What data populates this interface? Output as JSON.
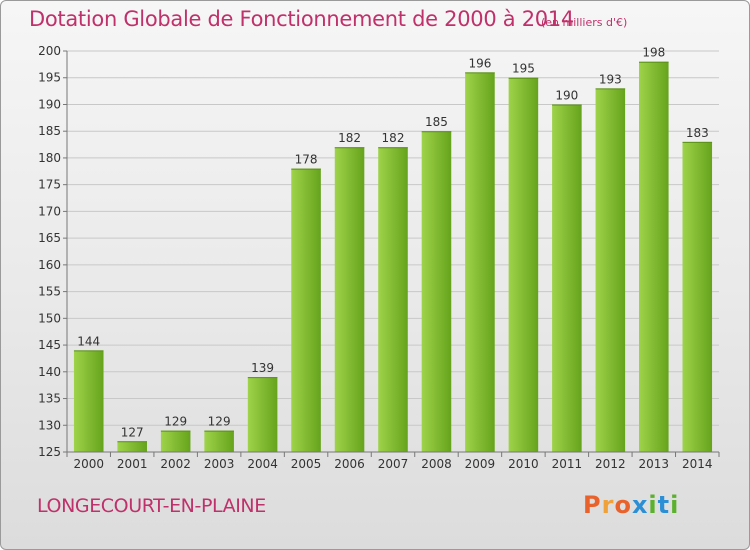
{
  "header": {
    "title": "Dotation Globale de Fonctionnement de 2000 à 2014",
    "unit_note": "(en milliers d'€)"
  },
  "footer": {
    "commune": "LONGECOURT-EN-PLAINE",
    "logo_text": "Proxiti",
    "logo_colors": [
      "#e9622b",
      "#f0a13a",
      "#e9622b",
      "#2c8fd6",
      "#5bb02c",
      "#2c8fd6",
      "#5bb02c"
    ]
  },
  "colors": {
    "title": "#c0306a",
    "bar_light": "#9ed34a",
    "bar_dark": "#66a31c",
    "grid": "#c8c8c8"
  },
  "chart_data": {
    "type": "bar",
    "title": "Dotation Globale de Fonctionnement de 2000 à 2014",
    "subtitle": "(en milliers d'€)",
    "xlabel": "",
    "ylabel": "",
    "categories": [
      "2000",
      "2001",
      "2002",
      "2003",
      "2004",
      "2005",
      "2006",
      "2007",
      "2008",
      "2009",
      "2010",
      "2011",
      "2012",
      "2013",
      "2014"
    ],
    "values": [
      144,
      127,
      129,
      129,
      139,
      178,
      182,
      182,
      185,
      196,
      195,
      190,
      193,
      198,
      183
    ],
    "ylim": [
      125,
      200
    ],
    "yticks": [
      125,
      130,
      135,
      140,
      145,
      150,
      155,
      160,
      165,
      170,
      175,
      180,
      185,
      190,
      195,
      200
    ],
    "grid": true,
    "data_labels": true
  }
}
